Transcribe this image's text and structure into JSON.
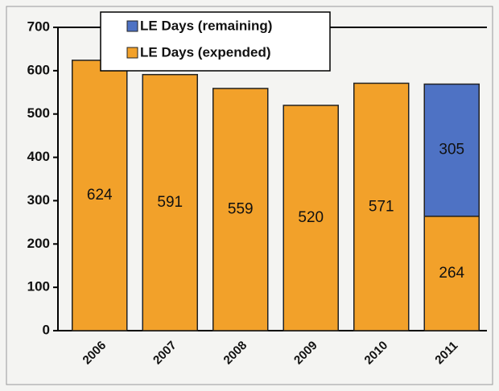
{
  "chart_data": {
    "type": "stacked-bar",
    "categories": [
      "2006",
      "2007",
      "2008",
      "2009",
      "2010",
      "2011"
    ],
    "series": [
      {
        "name": "LE Days (expended)",
        "color": "#f2a12a",
        "values": [
          624,
          591,
          559,
          520,
          571,
          264
        ]
      },
      {
        "name": "LE Days (remaining)",
        "color": "#4e72c4",
        "values": [
          null,
          null,
          null,
          null,
          null,
          305
        ]
      }
    ],
    "ylim": [
      0,
      700
    ],
    "yticks": [
      0,
      100,
      200,
      300,
      400,
      500,
      600,
      700
    ]
  }
}
